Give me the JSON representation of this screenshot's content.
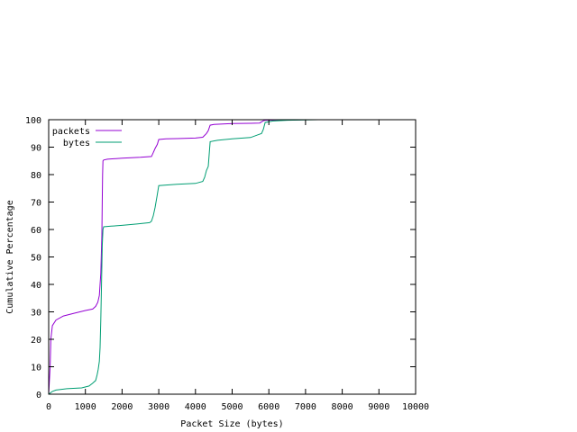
{
  "chart_data": {
    "type": "line",
    "title": "",
    "xlabel": "Packet Size (bytes)",
    "ylabel": "Cumulative Percentage",
    "xlim": [
      0,
      10000
    ],
    "ylim": [
      0,
      100
    ],
    "xticks": [
      0,
      1000,
      2000,
      3000,
      4000,
      5000,
      6000,
      7000,
      8000,
      9000,
      10000
    ],
    "yticks": [
      0,
      10,
      20,
      30,
      40,
      50,
      60,
      70,
      80,
      90,
      100
    ],
    "grid": false,
    "legend_position": "top-left",
    "series": [
      {
        "name": "packets",
        "color": "#9400d3",
        "x": [
          0,
          40,
          60,
          100,
          200,
          400,
          700,
          1000,
          1200,
          1280,
          1340,
          1380,
          1420,
          1450,
          1460,
          1470,
          1480,
          1500,
          1600,
          2000,
          2500,
          2800,
          2850,
          2900,
          2960,
          3000,
          3200,
          3500,
          4000,
          4200,
          4300,
          4350,
          4400,
          4500,
          5000,
          5500,
          5750,
          5800,
          5850,
          5900,
          6000,
          6300,
          6600,
          7000,
          7350
        ],
        "y": [
          0,
          10,
          20,
          25,
          27,
          28.5,
          29.5,
          30.5,
          31,
          32,
          33.5,
          36,
          44,
          58,
          70,
          80,
          85,
          85.3,
          85.6,
          86,
          86.3,
          86.6,
          88,
          89.5,
          91,
          92.8,
          93,
          93.1,
          93.3,
          93.6,
          95,
          96,
          98,
          98.3,
          98.6,
          98.7,
          98.8,
          99.2,
          99.6,
          99.8,
          99.85,
          99.9,
          99.95,
          100,
          100
        ]
      },
      {
        "name": "bytes",
        "color": "#009e73",
        "x": [
          0,
          50,
          100,
          200,
          500,
          900,
          1100,
          1200,
          1280,
          1320,
          1350,
          1380,
          1400,
          1420,
          1440,
          1460,
          1480,
          1500,
          1700,
          2000,
          2400,
          2750,
          2800,
          2850,
          2900,
          2950,
          3000,
          3200,
          3500,
          4000,
          4200,
          4250,
          4300,
          4350,
          4400,
          4600,
          5000,
          5500,
          5700,
          5800,
          5850,
          5900,
          6100,
          6500,
          7000,
          7350
        ],
        "y": [
          0,
          0.5,
          1,
          1.5,
          2,
          2.3,
          3,
          4,
          5,
          7,
          9,
          12,
          17,
          27,
          40,
          54,
          60,
          61,
          61.2,
          61.5,
          62,
          62.5,
          63,
          65,
          68,
          72,
          76,
          76.2,
          76.5,
          76.8,
          77.5,
          79,
          81.5,
          83,
          92,
          92.5,
          93,
          93.5,
          94.5,
          95,
          96.5,
          99,
          99.5,
          99.8,
          99.95,
          100
        ]
      }
    ]
  }
}
